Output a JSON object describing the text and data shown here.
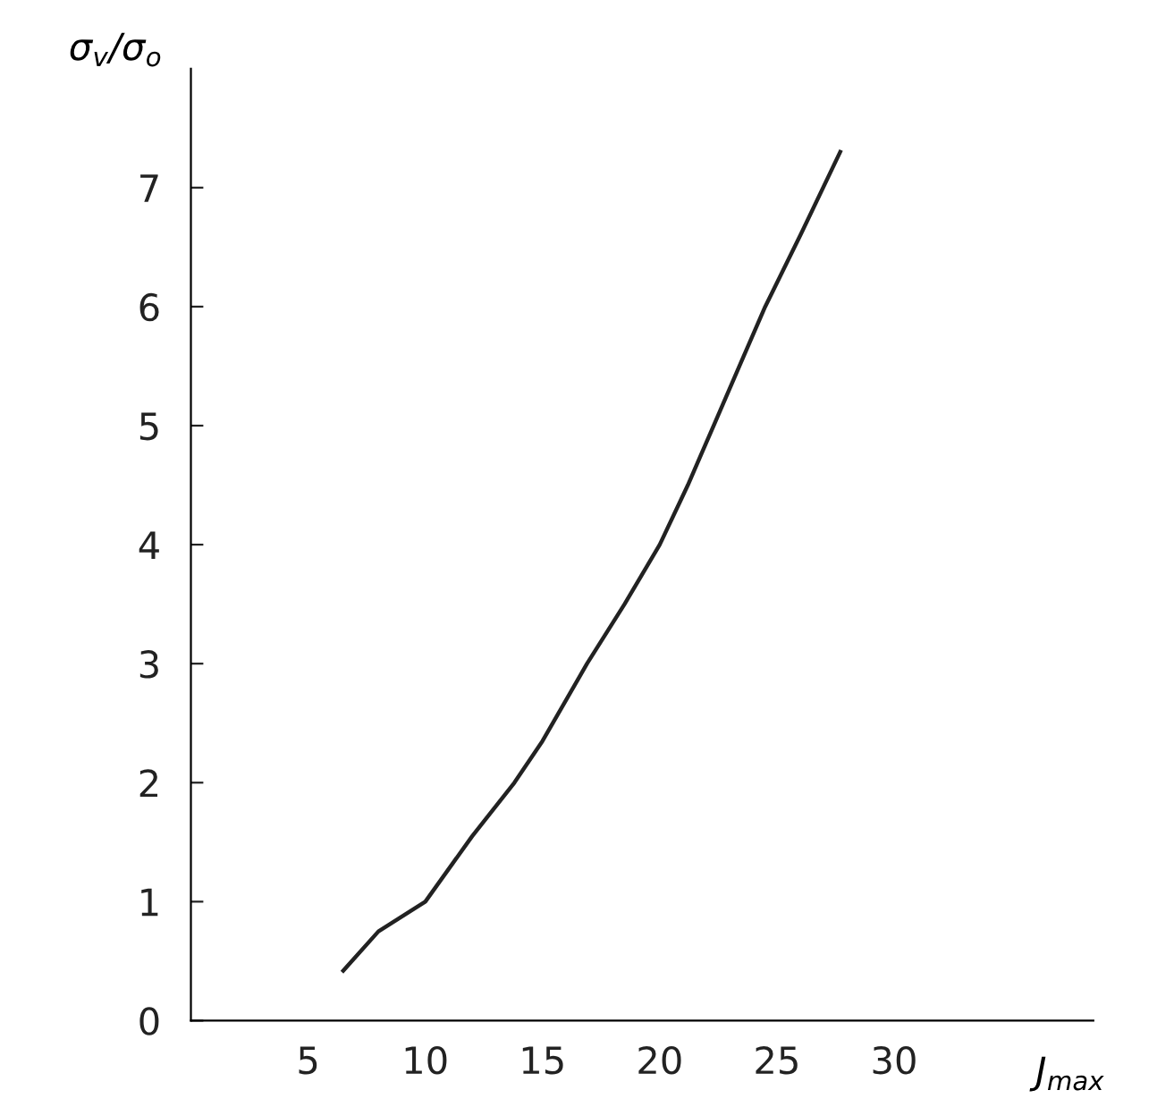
{
  "chart_data": {
    "type": "line",
    "xlabel": "J$_{max}$",
    "ylabel": "σ$_{v}$/σ$_{o}$",
    "x": [
      6.5,
      8,
      10,
      12,
      13.8,
      15,
      16.9,
      18.5,
      20,
      21.2,
      22.3,
      23.4,
      24.5,
      26,
      27.7
    ],
    "series": [
      {
        "color": "#222222",
        "values": [
          0.42,
          0.75,
          1.0,
          1.55,
          2.0,
          2.35,
          3.0,
          3.5,
          4.0,
          4.5,
          5.0,
          5.5,
          6.0,
          6.6,
          7.3
        ]
      }
    ],
    "xlim": [
      0,
      38.5
    ],
    "ylim": [
      0,
      8
    ],
    "xticks": [
      5,
      10,
      15,
      20,
      25,
      30
    ],
    "yticks": [
      0,
      1,
      2,
      3,
      4,
      5,
      6,
      7
    ],
    "grid": false,
    "legend": false,
    "marker": "none",
    "line_style": "solid"
  }
}
